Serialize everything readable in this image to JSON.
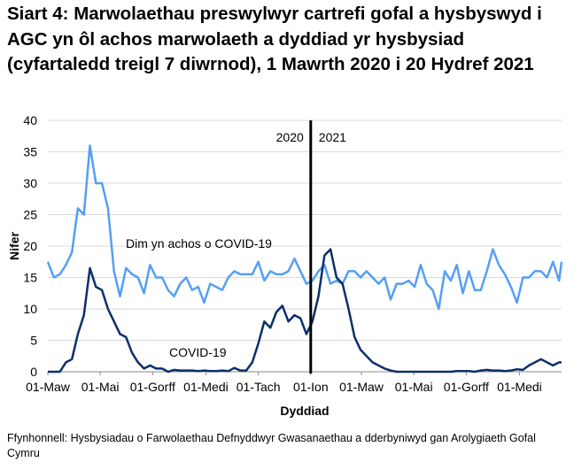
{
  "title": "Siart 4: Marwolaethau preswylwyr cartrefi gofal a hysbyswyd i AGC yn ôl achos marwolaeth a dyddiad yr hysbysiad (cyfartaledd treigl 7 diwrnod), 1 Mawrth 2020 i 20 Hydref 2021",
  "source": "Ffynhonnell: Hysbysiadau o Farwolaethau Defnyddwyr Gwasanaethau a dderbyniwyd gan Arolygiaeth Gofal Cymru",
  "chart_data": {
    "type": "line",
    "xlabel": "Dyddiad",
    "ylabel": "Nifer",
    "ylim": [
      0,
      40
    ],
    "yticks": [
      0,
      5,
      10,
      15,
      20,
      25,
      30,
      35,
      40
    ],
    "xlim": [
      "2020-03-01",
      "2021-10-20"
    ],
    "xticks": [
      {
        "date": "2020-03-01",
        "label": "01-Maw"
      },
      {
        "date": "2020-05-01",
        "label": "01-Mai"
      },
      {
        "date": "2020-07-01",
        "label": "01-Gorff"
      },
      {
        "date": "2020-09-01",
        "label": "01-Medi"
      },
      {
        "date": "2020-11-01",
        "label": "01-Tach"
      },
      {
        "date": "2021-01-01",
        "label": "01-Ion"
      },
      {
        "date": "2021-03-01",
        "label": "01-Maw"
      },
      {
        "date": "2021-05-01",
        "label": "01-Mai"
      },
      {
        "date": "2021-07-01",
        "label": "01-Gorff"
      },
      {
        "date": "2021-09-01",
        "label": "01-Medi"
      }
    ],
    "grid": "horizontal",
    "divider": {
      "date": "2021-01-01",
      "left_label": "2020",
      "right_label": "2021"
    },
    "x": [
      "2020-03-01",
      "2020-03-08",
      "2020-03-15",
      "2020-03-22",
      "2020-03-29",
      "2020-04-05",
      "2020-04-12",
      "2020-04-19",
      "2020-04-26",
      "2020-05-03",
      "2020-05-10",
      "2020-05-17",
      "2020-05-24",
      "2020-05-31",
      "2020-06-07",
      "2020-06-14",
      "2020-06-21",
      "2020-06-28",
      "2020-07-05",
      "2020-07-12",
      "2020-07-19",
      "2020-07-26",
      "2020-08-02",
      "2020-08-09",
      "2020-08-16",
      "2020-08-23",
      "2020-08-30",
      "2020-09-06",
      "2020-09-13",
      "2020-09-20",
      "2020-09-27",
      "2020-10-04",
      "2020-10-11",
      "2020-10-18",
      "2020-10-25",
      "2020-11-01",
      "2020-11-08",
      "2020-11-15",
      "2020-11-22",
      "2020-11-29",
      "2020-12-06",
      "2020-12-13",
      "2020-12-20",
      "2020-12-27",
      "2021-01-03",
      "2021-01-10",
      "2021-01-17",
      "2021-01-24",
      "2021-01-31",
      "2021-02-07",
      "2021-02-14",
      "2021-02-21",
      "2021-02-28",
      "2021-03-07",
      "2021-03-14",
      "2021-03-21",
      "2021-03-28",
      "2021-04-04",
      "2021-04-11",
      "2021-04-18",
      "2021-04-25",
      "2021-05-02",
      "2021-05-09",
      "2021-05-16",
      "2021-05-23",
      "2021-05-30",
      "2021-06-06",
      "2021-06-13",
      "2021-06-20",
      "2021-06-27",
      "2021-07-04",
      "2021-07-11",
      "2021-07-18",
      "2021-07-25",
      "2021-08-01",
      "2021-08-08",
      "2021-08-15",
      "2021-08-22",
      "2021-08-29",
      "2021-09-05",
      "2021-09-12",
      "2021-09-19",
      "2021-09-26",
      "2021-10-03",
      "2021-10-10",
      "2021-10-17",
      "2021-10-20"
    ],
    "series": [
      {
        "name": "Dim yn achos o COVID-19",
        "color": "#559ff5",
        "values": [
          17.5,
          15,
          15.5,
          17,
          19,
          26,
          25,
          36,
          30,
          30,
          26,
          16,
          12,
          16.5,
          15.5,
          15,
          12.5,
          17,
          15,
          15,
          13,
          12,
          14,
          15,
          13,
          13.5,
          11,
          14,
          13.5,
          13,
          15,
          16,
          15.5,
          15.5,
          15.5,
          17.5,
          14.5,
          16,
          15.5,
          15.5,
          16,
          18,
          16,
          14,
          14.5,
          16,
          17,
          14,
          14.5,
          14,
          16,
          16,
          15,
          16,
          15,
          14,
          15,
          11.5,
          14,
          14,
          14.5,
          13.5,
          17,
          14,
          13,
          10,
          16,
          14.5,
          17,
          12.5,
          16,
          13,
          13,
          16,
          19.5,
          17,
          15.5,
          13.5,
          11,
          15,
          15,
          16,
          16,
          15,
          17.5,
          14.5,
          17.5
        ]
      },
      {
        "name": "COVID-19",
        "color": "#0c2f6b",
        "values": [
          0,
          0,
          0,
          1.5,
          2,
          6,
          9,
          16.5,
          13.5,
          13,
          10,
          8,
          6,
          5.5,
          3,
          1.5,
          0.5,
          1,
          0.5,
          0.5,
          0,
          0.3,
          0.2,
          0.2,
          0.2,
          0.1,
          0.2,
          0.1,
          0.1,
          0.2,
          0.1,
          0.6,
          0.2,
          0.2,
          1.5,
          4.5,
          8,
          7,
          9.5,
          10.5,
          8,
          9,
          8.5,
          6,
          8,
          12,
          18.5,
          19.5,
          15,
          14,
          10,
          5.5,
          3.5,
          2.5,
          1.5,
          1,
          0.5,
          0.2,
          0,
          0,
          0,
          0,
          0,
          0,
          0,
          0,
          0,
          0,
          0.1,
          0.1,
          0.1,
          0,
          0.2,
          0.3,
          0.2,
          0.2,
          0.1,
          0.2,
          0.4,
          0.3,
          1,
          1.5,
          2,
          1.5,
          1,
          1.5,
          1.5
        ]
      }
    ]
  }
}
